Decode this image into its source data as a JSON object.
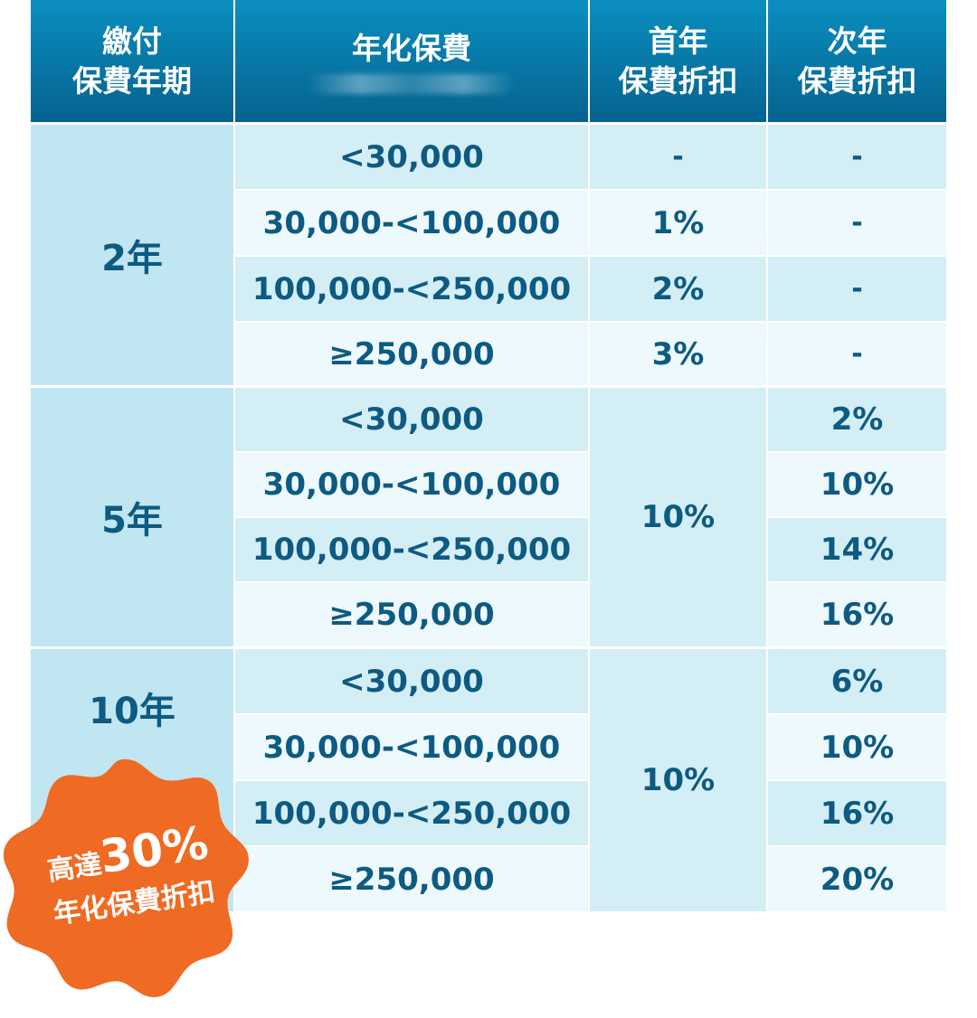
{
  "header": {
    "term_line1": "繳付",
    "term_line2": "保費年期",
    "premium": "年化保費",
    "first_line1": "首年",
    "first_line2": "保費折扣",
    "second_line1": "次年",
    "second_line2": "保費折扣"
  },
  "groups": [
    {
      "term": "2年",
      "rows": [
        {
          "premium": "<30,000",
          "first": "-",
          "second": "-"
        },
        {
          "premium": "30,000-<100,000",
          "first": "1%",
          "second": "-"
        },
        {
          "premium": "100,000-<250,000",
          "first": "2%",
          "second": "-"
        },
        {
          "premium": "≥250,000",
          "first": "3%",
          "second": "-"
        }
      ]
    },
    {
      "term": "5年",
      "first_merged": "10%",
      "rows": [
        {
          "premium": "<30,000",
          "second": "2%"
        },
        {
          "premium": "30,000-<100,000",
          "second": "10%"
        },
        {
          "premium": "100,000-<250,000",
          "second": "14%"
        },
        {
          "premium": "≥250,000",
          "second": "16%"
        }
      ]
    },
    {
      "term": "10年",
      "first_merged": "10%",
      "rows": [
        {
          "premium": "<30,000",
          "second": "6%"
        },
        {
          "premium": "30,000-<100,000",
          "second": "10%"
        },
        {
          "premium": "100,000-<250,000",
          "second": "16%"
        },
        {
          "premium": "≥250,000",
          "second": "20%"
        }
      ]
    }
  ],
  "badge": {
    "prefix": "高達",
    "highlight": "30%",
    "line2": "年化保費折扣"
  },
  "colors": {
    "header": "#05628f",
    "text": "#0d5a82",
    "badge": "#ef6a22"
  }
}
